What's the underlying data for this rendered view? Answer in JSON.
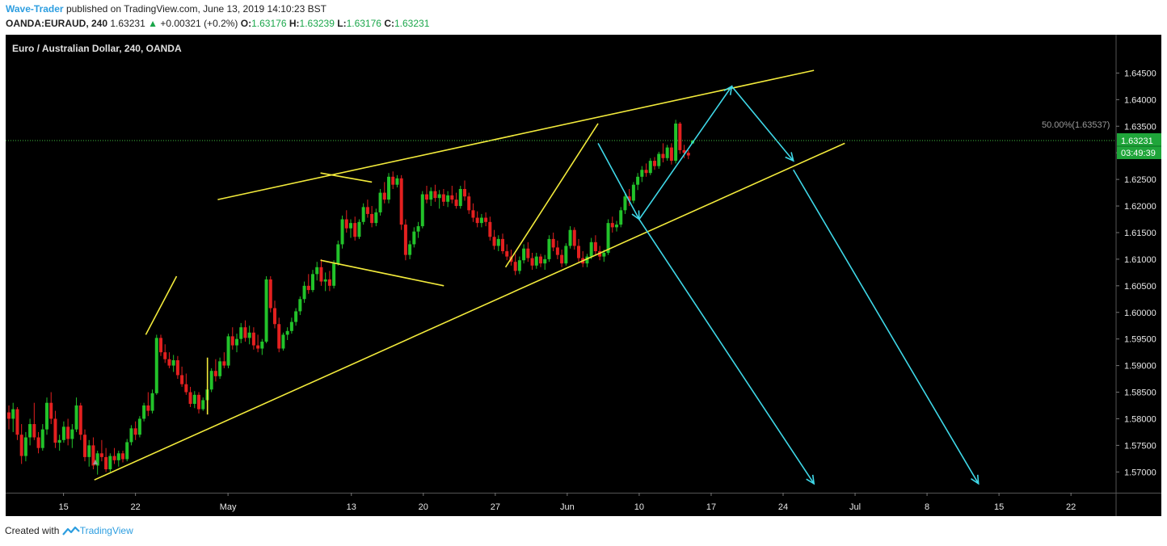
{
  "header": {
    "author": "Wave-Trader",
    "published_text": "published on TradingView.com, June 13, 2019 14:10:23 BST",
    "symbol": "OANDA:EURAUD, 240",
    "last": "1.63231",
    "change": "+0.00321 (+0.2%)",
    "o_label": "O:",
    "o": "1.63176",
    "h_label": "H:",
    "h": "1.63239",
    "l_label": "L:",
    "l": "1.63176",
    "c_label": "C:",
    "c": "1.63231"
  },
  "footer": {
    "created_with": "Created with",
    "brand": "TradingView"
  },
  "colors": {
    "background": "#000000",
    "up": "#22c22a",
    "down": "#e3201f",
    "trendline": "#f2ea3b",
    "projection": "#3fd8e8",
    "price_line": "#3fbf3f",
    "price_label_bg": "#1fa53a"
  },
  "chart_data": {
    "type": "candlestick",
    "title": "Euro / Australian Dollar, 240, OANDA",
    "y_ticks": [
      "1.64500",
      "1.64000",
      "1.63500",
      "1.63000",
      "1.62500",
      "1.62000",
      "1.61500",
      "1.61000",
      "1.60500",
      "1.60000",
      "1.59500",
      "1.59000",
      "1.58500",
      "1.58000",
      "1.57500",
      "1.57000"
    ],
    "x_ticks": [
      "15",
      "22",
      "May",
      "13",
      "20",
      "27",
      "Jun",
      "10",
      "17",
      "24",
      "Jul",
      "8",
      "15",
      "22"
    ],
    "ylim": [
      1.5661,
      1.6522
    ],
    "current_price": "1.63231",
    "countdown": "03:49:39",
    "fib_label": "50.00%(1.63537)",
    "fib_value": 1.63537,
    "series_ohlc": [
      [
        1.5812,
        1.5825,
        1.578,
        1.58
      ],
      [
        1.58,
        1.583,
        1.5775,
        1.5818
      ],
      [
        1.5818,
        1.5822,
        1.576,
        1.577
      ],
      [
        1.577,
        1.579,
        1.5715,
        1.573
      ],
      [
        1.573,
        1.5775,
        1.572,
        1.5765
      ],
      [
        1.5765,
        1.58,
        1.575,
        1.579
      ],
      [
        1.579,
        1.583,
        1.576,
        1.5765
      ],
      [
        1.5765,
        1.5775,
        1.5735,
        1.5745
      ],
      [
        1.5745,
        1.579,
        1.574,
        1.578
      ],
      [
        1.578,
        1.584,
        1.577,
        1.583
      ],
      [
        1.583,
        1.585,
        1.579,
        1.58
      ],
      [
        1.58,
        1.5815,
        1.5745,
        1.5755
      ],
      [
        1.5755,
        1.577,
        1.574,
        1.576
      ],
      [
        1.576,
        1.5795,
        1.5755,
        1.5785
      ],
      [
        1.5785,
        1.58,
        1.575,
        1.5762
      ],
      [
        1.5762,
        1.579,
        1.5745,
        1.578
      ],
      [
        1.578,
        1.584,
        1.5775,
        1.5825
      ],
      [
        1.5825,
        1.583,
        1.576,
        1.577
      ],
      [
        1.577,
        1.578,
        1.572,
        1.5728
      ],
      [
        1.5728,
        1.576,
        1.571,
        1.575
      ],
      [
        1.575,
        1.5765,
        1.5705,
        1.5712
      ],
      [
        1.5712,
        1.574,
        1.5695,
        1.5735
      ],
      [
        1.5735,
        1.576,
        1.572,
        1.5728
      ],
      [
        1.5728,
        1.5745,
        1.57,
        1.5705
      ],
      [
        1.5705,
        1.5735,
        1.57,
        1.573
      ],
      [
        1.573,
        1.5745,
        1.5715,
        1.5722
      ],
      [
        1.5722,
        1.574,
        1.571,
        1.5735
      ],
      [
        1.5735,
        1.574,
        1.5718,
        1.5724
      ],
      [
        1.5724,
        1.5762,
        1.572,
        1.5756
      ],
      [
        1.5756,
        1.5788,
        1.575,
        1.5782
      ],
      [
        1.5782,
        1.5795,
        1.576,
        1.577
      ],
      [
        1.577,
        1.5805,
        1.5765,
        1.58
      ],
      [
        1.58,
        1.583,
        1.5795,
        1.5825
      ],
      [
        1.5825,
        1.585,
        1.5805,
        1.5815
      ],
      [
        1.5815,
        1.5855,
        1.581,
        1.5848
      ],
      [
        1.5848,
        1.5958,
        1.5845,
        1.5952
      ],
      [
        1.5952,
        1.5958,
        1.5918,
        1.5925
      ],
      [
        1.5925,
        1.594,
        1.5905,
        1.5912
      ],
      [
        1.5912,
        1.5925,
        1.5895,
        1.59
      ],
      [
        1.59,
        1.592,
        1.5888,
        1.591
      ],
      [
        1.591,
        1.5918,
        1.5875,
        1.5882
      ],
      [
        1.5882,
        1.5898,
        1.586,
        1.5865
      ],
      [
        1.5865,
        1.5885,
        1.5845,
        1.585
      ],
      [
        1.585,
        1.586,
        1.5822,
        1.5828
      ],
      [
        1.5828,
        1.5852,
        1.582,
        1.5845
      ],
      [
        1.5845,
        1.585,
        1.581,
        1.5818
      ],
      [
        1.5818,
        1.584,
        1.5815,
        1.5835
      ],
      [
        1.5835,
        1.586,
        1.5828,
        1.5855
      ],
      [
        1.5855,
        1.5895,
        1.585,
        1.589
      ],
      [
        1.589,
        1.5912,
        1.587,
        1.588
      ],
      [
        1.588,
        1.5915,
        1.5875,
        1.5908
      ],
      [
        1.5908,
        1.5925,
        1.5895,
        1.59
      ],
      [
        1.59,
        1.596,
        1.5895,
        1.5955
      ],
      [
        1.5955,
        1.5972,
        1.593,
        1.5938
      ],
      [
        1.5938,
        1.596,
        1.5925,
        1.595
      ],
      [
        1.595,
        1.598,
        1.5942,
        1.5972
      ],
      [
        1.5972,
        1.5985,
        1.5945,
        1.5952
      ],
      [
        1.5952,
        1.5975,
        1.594,
        1.5962
      ],
      [
        1.5962,
        1.5972,
        1.593,
        1.5938
      ],
      [
        1.5938,
        1.5958,
        1.5925,
        1.5932
      ],
      [
        1.5932,
        1.595,
        1.592,
        1.5945
      ],
      [
        1.5945,
        1.6068,
        1.5942,
        1.6062
      ],
      [
        1.6062,
        1.6068,
        1.6,
        1.6008
      ],
      [
        1.6008,
        1.6022,
        1.597,
        1.5978
      ],
      [
        1.5978,
        1.599,
        1.5925,
        1.5932
      ],
      [
        1.5932,
        1.5962,
        1.5928,
        1.5958
      ],
      [
        1.5958,
        1.5972,
        1.5948,
        1.5965
      ],
      [
        1.5965,
        1.599,
        1.596,
        1.5982
      ],
      [
        1.5982,
        1.6008,
        1.5975,
        1.6002
      ],
      [
        1.6002,
        1.603,
        1.5995,
        1.6025
      ],
      [
        1.6025,
        1.6058,
        1.6018,
        1.605
      ],
      [
        1.605,
        1.6072,
        1.6035,
        1.6042
      ],
      [
        1.6042,
        1.608,
        1.6038,
        1.6072
      ],
      [
        1.6072,
        1.6095,
        1.606,
        1.6085
      ],
      [
        1.6085,
        1.61,
        1.605,
        1.6058
      ],
      [
        1.6058,
        1.6075,
        1.604,
        1.6062
      ],
      [
        1.6062,
        1.6078,
        1.604,
        1.605
      ],
      [
        1.605,
        1.6098,
        1.6045,
        1.6092
      ],
      [
        1.6092,
        1.6135,
        1.6088,
        1.6128
      ],
      [
        1.6128,
        1.6182,
        1.612,
        1.6175
      ],
      [
        1.6175,
        1.6192,
        1.615,
        1.6158
      ],
      [
        1.6158,
        1.6175,
        1.614,
        1.6168
      ],
      [
        1.6168,
        1.618,
        1.6135,
        1.6142
      ],
      [
        1.6142,
        1.6175,
        1.6138,
        1.617
      ],
      [
        1.617,
        1.6205,
        1.6165,
        1.6198
      ],
      [
        1.6198,
        1.6212,
        1.6178,
        1.6185
      ],
      [
        1.6185,
        1.62,
        1.616,
        1.6168
      ],
      [
        1.6168,
        1.6195,
        1.6162,
        1.6188
      ],
      [
        1.6188,
        1.6232,
        1.6182,
        1.6225
      ],
      [
        1.6225,
        1.6245,
        1.6205,
        1.6212
      ],
      [
        1.6212,
        1.6262,
        1.6205,
        1.6255
      ],
      [
        1.6255,
        1.6265,
        1.6232,
        1.624
      ],
      [
        1.624,
        1.6258,
        1.6235,
        1.6252
      ],
      [
        1.6252,
        1.6258,
        1.6155,
        1.6165
      ],
      [
        1.6165,
        1.6175,
        1.6098,
        1.6108
      ],
      [
        1.6108,
        1.6135,
        1.61,
        1.6128
      ],
      [
        1.6128,
        1.616,
        1.6122,
        1.6152
      ],
      [
        1.6152,
        1.617,
        1.614,
        1.6162
      ],
      [
        1.6162,
        1.6228,
        1.6158,
        1.6222
      ],
      [
        1.6222,
        1.6238,
        1.6205,
        1.6212
      ],
      [
        1.6212,
        1.6235,
        1.62,
        1.6228
      ],
      [
        1.6228,
        1.624,
        1.6208,
        1.6215
      ],
      [
        1.6215,
        1.623,
        1.6195,
        1.6222
      ],
      [
        1.6222,
        1.6232,
        1.62,
        1.6208
      ],
      [
        1.6208,
        1.6228,
        1.6198,
        1.622
      ],
      [
        1.622,
        1.6238,
        1.6205,
        1.6212
      ],
      [
        1.6212,
        1.6225,
        1.6195,
        1.62
      ],
      [
        1.62,
        1.6238,
        1.6195,
        1.6232
      ],
      [
        1.6232,
        1.6248,
        1.621,
        1.6218
      ],
      [
        1.6218,
        1.6225,
        1.6185,
        1.6192
      ],
      [
        1.6192,
        1.6205,
        1.617,
        1.6178
      ],
      [
        1.6178,
        1.619,
        1.616,
        1.6168
      ],
      [
        1.6168,
        1.6185,
        1.616,
        1.6178
      ],
      [
        1.6178,
        1.6188,
        1.6162,
        1.617
      ],
      [
        1.617,
        1.618,
        1.6135,
        1.6142
      ],
      [
        1.6142,
        1.6155,
        1.6118,
        1.6125
      ],
      [
        1.6125,
        1.6145,
        1.6115,
        1.6138
      ],
      [
        1.6138,
        1.6148,
        1.611,
        1.6115
      ],
      [
        1.6115,
        1.6128,
        1.6098,
        1.6105
      ],
      [
        1.6105,
        1.6118,
        1.6088,
        1.6095
      ],
      [
        1.6095,
        1.611,
        1.607,
        1.6078
      ],
      [
        1.6078,
        1.6105,
        1.6072,
        1.6098
      ],
      [
        1.6098,
        1.6128,
        1.6092,
        1.612
      ],
      [
        1.612,
        1.6132,
        1.6095,
        1.6102
      ],
      [
        1.6102,
        1.6112,
        1.608,
        1.6088
      ],
      [
        1.6088,
        1.6112,
        1.6082,
        1.6105
      ],
      [
        1.6105,
        1.611,
        1.6085,
        1.6092
      ],
      [
        1.6092,
        1.6108,
        1.608,
        1.61
      ],
      [
        1.61,
        1.6145,
        1.6095,
        1.6138
      ],
      [
        1.6138,
        1.615,
        1.6115,
        1.6122
      ],
      [
        1.6122,
        1.6135,
        1.61,
        1.6108
      ],
      [
        1.6108,
        1.6118,
        1.6085,
        1.6092
      ],
      [
        1.6092,
        1.613,
        1.6088,
        1.6125
      ],
      [
        1.6125,
        1.6162,
        1.612,
        1.6155
      ],
      [
        1.6155,
        1.616,
        1.6118,
        1.6125
      ],
      [
        1.6125,
        1.6138,
        1.6095,
        1.6102
      ],
      [
        1.6102,
        1.6115,
        1.6085,
        1.6092
      ],
      [
        1.6092,
        1.611,
        1.6085,
        1.6105
      ],
      [
        1.6105,
        1.614,
        1.61,
        1.6132
      ],
      [
        1.6132,
        1.6145,
        1.6108,
        1.6115
      ],
      [
        1.6115,
        1.6125,
        1.6098,
        1.6105
      ],
      [
        1.6105,
        1.6118,
        1.6095,
        1.6112
      ],
      [
        1.6112,
        1.6175,
        1.6108,
        1.6168
      ],
      [
        1.6168,
        1.618,
        1.615,
        1.616
      ],
      [
        1.616,
        1.6172,
        1.6152,
        1.6165
      ],
      [
        1.6165,
        1.6198,
        1.616,
        1.6192
      ],
      [
        1.6192,
        1.6225,
        1.6185,
        1.6218
      ],
      [
        1.6218,
        1.6232,
        1.62,
        1.621
      ],
      [
        1.621,
        1.6245,
        1.6205,
        1.624
      ],
      [
        1.624,
        1.6262,
        1.623,
        1.6255
      ],
      [
        1.6255,
        1.6275,
        1.6245,
        1.6268
      ],
      [
        1.6268,
        1.628,
        1.6255,
        1.6262
      ],
      [
        1.6262,
        1.629,
        1.6258,
        1.6285
      ],
      [
        1.6285,
        1.6292,
        1.6268,
        1.6275
      ],
      [
        1.6275,
        1.6302,
        1.627,
        1.6298
      ],
      [
        1.6298,
        1.6318,
        1.6282,
        1.629
      ],
      [
        1.629,
        1.6315,
        1.6285,
        1.631
      ],
      [
        1.631,
        1.6318,
        1.6278,
        1.6285
      ],
      [
        1.6285,
        1.6362,
        1.628,
        1.6355
      ],
      [
        1.6355,
        1.6358,
        1.6298,
        1.6305
      ],
      [
        1.6305,
        1.6315,
        1.629,
        1.63
      ],
      [
        1.63,
        1.6305,
        1.6288,
        1.6295
      ],
      [
        1.63176,
        1.63239,
        1.63176,
        1.63231
      ]
    ],
    "annotations": {
      "trend_lines": [
        {
          "from": [
            "Apr 18",
            1.5685
          ],
          "to": [
            "Jul 9",
            1.6318
          ]
        },
        {
          "from": [
            "May 9",
            1.6212
          ],
          "to": [
            "Jul 6",
            1.6455
          ]
        },
        {
          "from": [
            "Apr 23",
            1.5958
          ],
          "to": [
            "May 5",
            1.6068
          ]
        },
        {
          "from": [
            "Apr 29",
            1.5808
          ],
          "to": [
            "May 8",
            1.5915
          ]
        },
        {
          "from": [
            "May 19",
            1.6262
          ],
          "to": [
            "May 24",
            1.6245
          ]
        },
        {
          "from": [
            "May 19",
            1.6098
          ],
          "to": [
            "May 31",
            1.605
          ]
        },
        {
          "from": [
            "Jun 6",
            1.6085
          ],
          "to": [
            "Jun 15",
            1.6355
          ]
        }
      ],
      "projection_paths": [
        [
          [
            "Jun 15",
            1.6318
          ],
          [
            "Jun 19",
            1.6175
          ],
          [
            "Jun 28",
            1.6425
          ],
          [
            "Jul 4",
            1.6285
          ]
        ],
        [
          [
            "Jun 19",
            1.6175
          ],
          [
            "Jul 6",
            1.5678
          ]
        ],
        [
          [
            "Jul 4",
            1.6268
          ],
          [
            "Jul 22",
            1.5678
          ]
        ]
      ]
    }
  }
}
